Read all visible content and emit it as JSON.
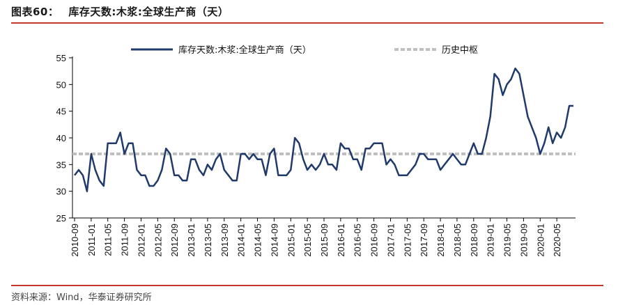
{
  "figure": {
    "label": "图表60：",
    "title": "库存天数:木浆:全球生产商（天）",
    "source": "资料来源：Wind，华泰证券研究所"
  },
  "colors": {
    "series": "#1f3a6b",
    "reference": "#bfbfbf",
    "rule": "#c0392b",
    "axis": "#000000"
  },
  "chart_data": {
    "type": "line",
    "title": "",
    "xlabel": "",
    "ylabel": "",
    "ylim": [
      25,
      55
    ],
    "yticks": [
      25,
      30,
      35,
      40,
      45,
      50,
      55
    ],
    "grid": false,
    "legend_position": "top",
    "xticks": [
      "2010-09",
      "2011-01",
      "2011-05",
      "2011-09",
      "2012-01",
      "2012-05",
      "2012-09",
      "2013-01",
      "2013-05",
      "2013-09",
      "2014-01",
      "2014-05",
      "2014-09",
      "2015-01",
      "2015-05",
      "2015-09",
      "2016-01",
      "2016-05",
      "2016-09",
      "2017-01",
      "2017-05",
      "2017-09",
      "2018-01",
      "2018-05",
      "2018-09",
      "2019-01",
      "2019-05",
      "2019-09",
      "2020-01",
      "2020-05"
    ],
    "series": [
      {
        "name": "库存天数:木浆:全球生产商（天）",
        "style": "solid",
        "values": [
          33,
          34,
          33,
          30,
          37,
          34,
          32,
          31,
          39,
          39,
          39,
          41,
          37,
          39,
          39,
          34,
          33,
          33,
          31,
          31,
          32,
          34,
          38,
          37,
          33,
          33,
          32,
          32,
          36,
          36,
          34,
          33,
          35,
          34,
          36,
          37,
          34,
          33,
          32,
          32,
          37,
          37,
          36,
          37,
          36,
          36,
          33,
          37,
          38,
          33,
          33,
          33,
          34,
          40,
          39,
          36,
          34,
          35,
          34,
          35,
          37,
          35,
          35,
          34,
          39,
          38,
          38,
          36,
          36,
          34,
          38,
          38,
          39,
          39,
          39,
          35,
          36,
          35,
          33,
          33,
          33,
          34,
          35,
          37,
          37,
          36,
          36,
          36,
          34,
          35,
          36,
          37,
          36,
          35,
          35,
          37,
          39,
          37,
          37,
          40,
          44,
          52,
          51,
          48,
          50,
          51,
          53,
          52,
          48,
          44,
          42,
          40,
          37,
          39,
          42,
          39,
          41,
          40,
          42,
          46,
          46
        ]
      },
      {
        "name": "历史中枢",
        "style": "dashed",
        "values": [
          37
        ]
      }
    ]
  }
}
